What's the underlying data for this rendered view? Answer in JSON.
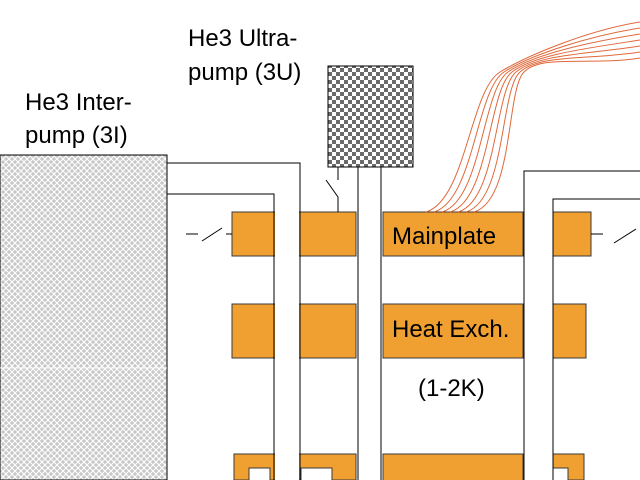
{
  "labels": {
    "interpump_line1": "He3 Inter-",
    "interpump_line2": "pump (3I)",
    "ultrapump_line1": "He3 Ultra-",
    "ultrapump_line2": "pump (3U)",
    "mainplate": "Mainplate",
    "heat_exch": "Heat Exch.",
    "temp_range": "(1-2K)"
  },
  "colors": {
    "plate": "#F0A030",
    "plate_stroke": "#3a3a3a",
    "line": "#000000",
    "wires": "#E0683A",
    "pump_fill": "#CFCFCF",
    "pump_hatch": "#ffffff"
  }
}
